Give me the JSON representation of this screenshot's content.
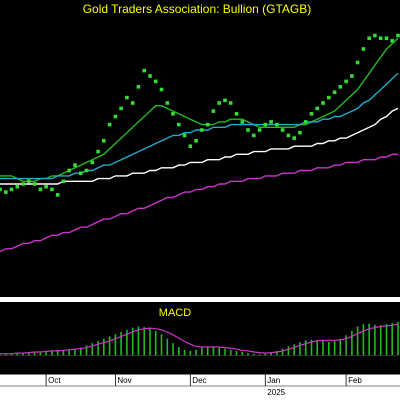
{
  "chart_data": {
    "type": "scatter",
    "title": "Gold Traders Association: Bullion (GTAGB)",
    "background_color": "#000000",
    "panel_border_color": "#6a6a8a",
    "price_panel": {
      "ylim": [
        0,
        100
      ],
      "price_points": {
        "name": "",
        "color": "#33dd33",
        "points": [
          [
            0,
            38
          ],
          [
            1,
            37
          ],
          [
            2,
            38
          ],
          [
            3,
            39
          ],
          [
            4,
            40
          ],
          [
            5,
            41
          ],
          [
            6,
            40
          ],
          [
            7,
            38
          ],
          [
            8,
            39
          ],
          [
            9,
            38
          ],
          [
            10,
            36
          ],
          [
            11,
            41
          ],
          [
            12,
            45
          ],
          [
            13,
            47
          ],
          [
            14,
            44
          ],
          [
            15,
            45
          ],
          [
            16,
            48
          ],
          [
            17,
            52
          ],
          [
            18,
            56
          ],
          [
            19,
            62
          ],
          [
            20,
            65
          ],
          [
            21,
            68
          ],
          [
            22,
            72
          ],
          [
            23,
            70
          ],
          [
            24,
            76
          ],
          [
            25,
            82
          ],
          [
            26,
            80
          ],
          [
            27,
            78
          ],
          [
            28,
            75
          ],
          [
            29,
            70
          ],
          [
            30,
            66
          ],
          [
            31,
            62
          ],
          [
            32,
            58
          ],
          [
            33,
            54
          ],
          [
            34,
            56
          ],
          [
            35,
            60
          ],
          [
            36,
            62
          ],
          [
            37,
            67
          ],
          [
            38,
            70
          ],
          [
            39,
            71
          ],
          [
            40,
            70
          ],
          [
            41,
            66
          ],
          [
            42,
            63
          ],
          [
            43,
            60
          ],
          [
            44,
            58
          ],
          [
            45,
            60
          ],
          [
            46,
            62
          ],
          [
            47,
            63
          ],
          [
            48,
            62
          ],
          [
            49,
            60
          ],
          [
            50,
            58
          ],
          [
            51,
            57
          ],
          [
            52,
            59
          ],
          [
            53,
            63
          ],
          [
            54,
            66
          ],
          [
            55,
            68
          ],
          [
            56,
            70
          ],
          [
            57,
            72
          ],
          [
            58,
            74
          ],
          [
            59,
            76
          ],
          [
            60,
            78
          ],
          [
            61,
            80
          ],
          [
            62,
            85
          ],
          [
            63,
            90
          ],
          [
            64,
            94
          ],
          [
            65,
            95
          ],
          [
            66,
            94
          ],
          [
            67,
            94
          ],
          [
            68,
            93
          ],
          [
            69,
            95
          ]
        ]
      },
      "moving_averages": [
        {
          "name": "",
          "color": "#22bb22",
          "values": [
            43,
            43,
            43,
            42,
            41,
            41,
            41,
            42,
            42,
            43,
            43,
            44,
            45,
            46,
            47,
            48,
            49,
            50,
            51,
            53,
            55,
            57,
            59,
            61,
            63,
            65,
            67,
            69,
            69,
            68,
            67,
            66,
            65,
            64,
            63,
            62,
            62,
            62,
            63,
            63,
            64,
            64,
            64,
            63,
            62,
            61,
            61,
            61,
            61,
            61,
            61,
            61,
            62,
            62,
            63,
            64,
            65,
            66,
            67,
            69,
            71,
            73,
            75,
            78,
            81,
            84,
            87,
            90,
            92,
            94
          ]
        },
        {
          "name": "",
          "color": "#22aacc",
          "values": [
            42,
            42,
            42,
            42,
            42,
            42,
            42,
            42,
            42,
            42,
            43,
            43,
            43,
            44,
            44,
            45,
            45,
            46,
            47,
            47,
            48,
            49,
            50,
            51,
            52,
            53,
            54,
            55,
            56,
            57,
            58,
            58,
            59,
            59,
            60,
            60,
            60,
            61,
            61,
            61,
            62,
            62,
            62,
            62,
            62,
            62,
            62,
            62,
            62,
            62,
            62,
            62,
            62,
            63,
            63,
            63,
            64,
            64,
            65,
            65,
            66,
            67,
            68,
            70,
            71,
            73,
            75,
            77,
            79,
            81
          ]
        },
        {
          "name": "",
          "color": "#ffffff",
          "values": [
            40,
            40,
            40,
            40,
            40,
            40,
            40,
            40,
            40,
            40,
            40,
            41,
            41,
            41,
            41,
            41,
            41,
            42,
            42,
            42,
            43,
            43,
            43,
            44,
            44,
            44,
            45,
            45,
            46,
            46,
            46,
            47,
            47,
            48,
            48,
            48,
            49,
            49,
            49,
            50,
            50,
            51,
            51,
            51,
            52,
            52,
            52,
            53,
            53,
            53,
            53,
            54,
            54,
            54,
            54,
            55,
            55,
            56,
            56,
            57,
            57,
            58,
            59,
            60,
            61,
            62,
            64,
            65,
            67,
            68
          ]
        },
        {
          "name": "",
          "color": "#cc33cc",
          "values": [
            15,
            16,
            16,
            17,
            18,
            18,
            19,
            19,
            20,
            21,
            21,
            22,
            22,
            23,
            24,
            24,
            25,
            26,
            27,
            27,
            28,
            29,
            29,
            30,
            31,
            31,
            32,
            33,
            34,
            35,
            35,
            36,
            37,
            37,
            38,
            38,
            39,
            39,
            40,
            40,
            41,
            41,
            41,
            42,
            42,
            42,
            43,
            43,
            43,
            44,
            44,
            44,
            45,
            45,
            45,
            46,
            46,
            46,
            47,
            47,
            48,
            48,
            48,
            49,
            49,
            49,
            50,
            50,
            51,
            51
          ]
        }
      ]
    },
    "macd_panel": {
      "label": "MACD",
      "ylim": [
        -3,
        6
      ],
      "histogram_color": "#22bb22",
      "line_color": "#cc33cc",
      "histogram": [
        0.2,
        0.3,
        0.3,
        0.4,
        0.5,
        0.5,
        0.6,
        0.7,
        0.8,
        0.9,
        1.0,
        1.0,
        1.0,
        1.2,
        1.4,
        1.8,
        2.2,
        2.6,
        3.0,
        3.4,
        3.8,
        4.2,
        4.6,
        5.0,
        5.2,
        5.1,
        4.8,
        4.4,
        3.8,
        3.0,
        2.2,
        1.5,
        1.0,
        0.8,
        1.0,
        1.4,
        1.6,
        1.5,
        1.4,
        1.2,
        1.0,
        0.8,
        0.6,
        0.4,
        0.3,
        0.2,
        0.3,
        0.5,
        0.8,
        1.2,
        1.6,
        2.0,
        2.4,
        2.7,
        2.8,
        2.8,
        2.6,
        2.4,
        2.6,
        3.0,
        3.6,
        4.4,
        5.2,
        5.6,
        5.7,
        5.5,
        5.4,
        5.6,
        5.8,
        6.0
      ],
      "signal": [
        0.3,
        0.3,
        0.3,
        0.4,
        0.4,
        0.5,
        0.6,
        0.6,
        0.7,
        0.8,
        0.8,
        0.9,
        1.0,
        1.1,
        1.2,
        1.4,
        1.7,
        2.0,
        2.3,
        2.6,
        3.0,
        3.4,
        3.8,
        4.2,
        4.6,
        4.8,
        4.9,
        4.8,
        4.6,
        4.2,
        3.7,
        3.1,
        2.5,
        2.0,
        1.6,
        1.5,
        1.5,
        1.5,
        1.5,
        1.4,
        1.3,
        1.1,
        0.9,
        0.8,
        0.6,
        0.5,
        0.4,
        0.5,
        0.6,
        0.8,
        1.1,
        1.4,
        1.8,
        2.1,
        2.4,
        2.6,
        2.7,
        2.7,
        2.7,
        2.8,
        3.0,
        3.4,
        3.9,
        4.4,
        4.8,
        5.0,
        5.2,
        5.3,
        5.4,
        5.6
      ]
    },
    "x_axis": {
      "tick_labels": [
        {
          "label": "Oct",
          "index": 8
        },
        {
          "label": "Nov",
          "index": 20
        },
        {
          "label": "Dec",
          "index": 33
        },
        {
          "label": "Jan",
          "index": 46
        },
        {
          "label": "Feb",
          "index": 60
        }
      ],
      "year_labels": [
        {
          "label": "2025",
          "index": 46
        }
      ]
    },
    "grid": false,
    "legend": "none"
  }
}
